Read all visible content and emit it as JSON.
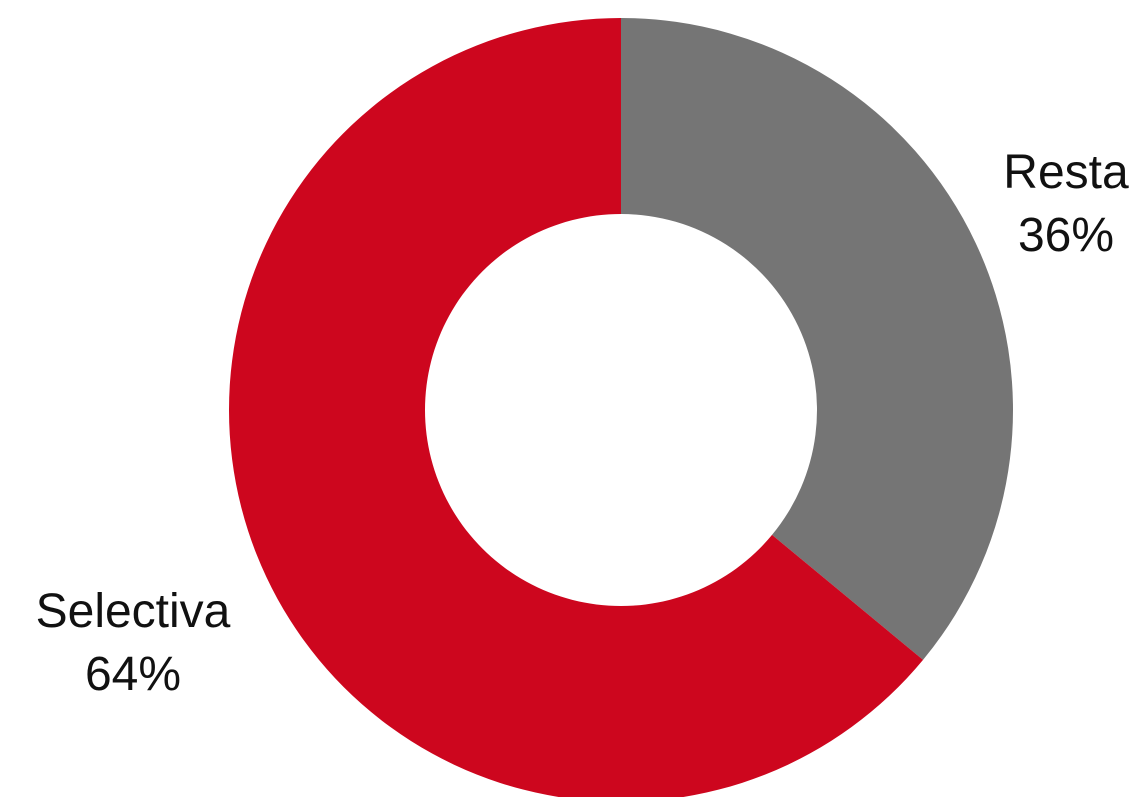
{
  "chart_data": {
    "type": "pie",
    "style": "donut",
    "title": "",
    "slices": [
      {
        "label": "Resta",
        "value": 36,
        "value_label": "36%",
        "color": "#757575"
      },
      {
        "label": "Selectiva",
        "value": 64,
        "value_label": "64%",
        "color": "#cd061e"
      }
    ],
    "legend": "none",
    "start_angle": "12 o'clock",
    "direction": "clockwise"
  }
}
